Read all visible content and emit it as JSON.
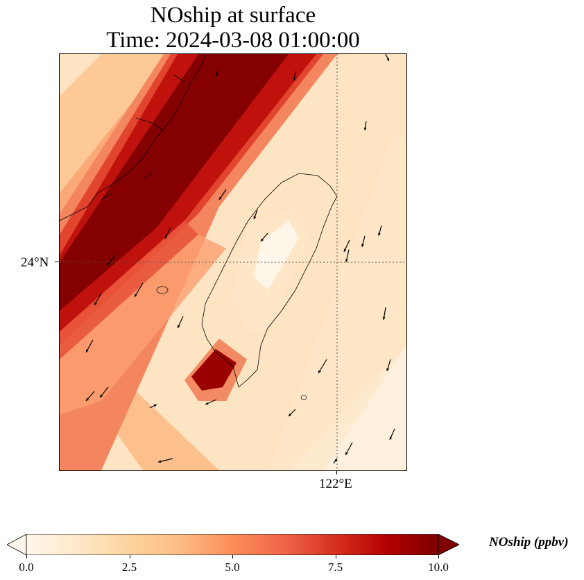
{
  "title": {
    "line1": "NOship at surface",
    "line2": "Time: 2024-03-08 01:00:00"
  },
  "map": {
    "gridlines": {
      "lat_label": "24°N",
      "lon_label": "122°E",
      "style": "dotted",
      "color": "#555555"
    },
    "field_name": "NOship",
    "units": "ppbv",
    "features": [
      "high-ship-NO-band-along-strait-northwest",
      "taiwan-island-low-values",
      "hotspot-southwest-taiwan-coast"
    ],
    "wind_vectors": "shown as black arrows, mostly pointing south-southwest"
  },
  "colorbar": {
    "label": "NOship (ppbv)",
    "min": 0.0,
    "max": 10.0,
    "extend": "both",
    "colormap": "OrRd",
    "colors": [
      "#fff7ec",
      "#fee8c8",
      "#fdd49e",
      "#fdbb84",
      "#fc8d59",
      "#ef6548",
      "#d7301f",
      "#b30000",
      "#7f0000"
    ],
    "ticks": [
      "0.0",
      "2.5",
      "5.0",
      "7.5",
      "10.0"
    ]
  }
}
